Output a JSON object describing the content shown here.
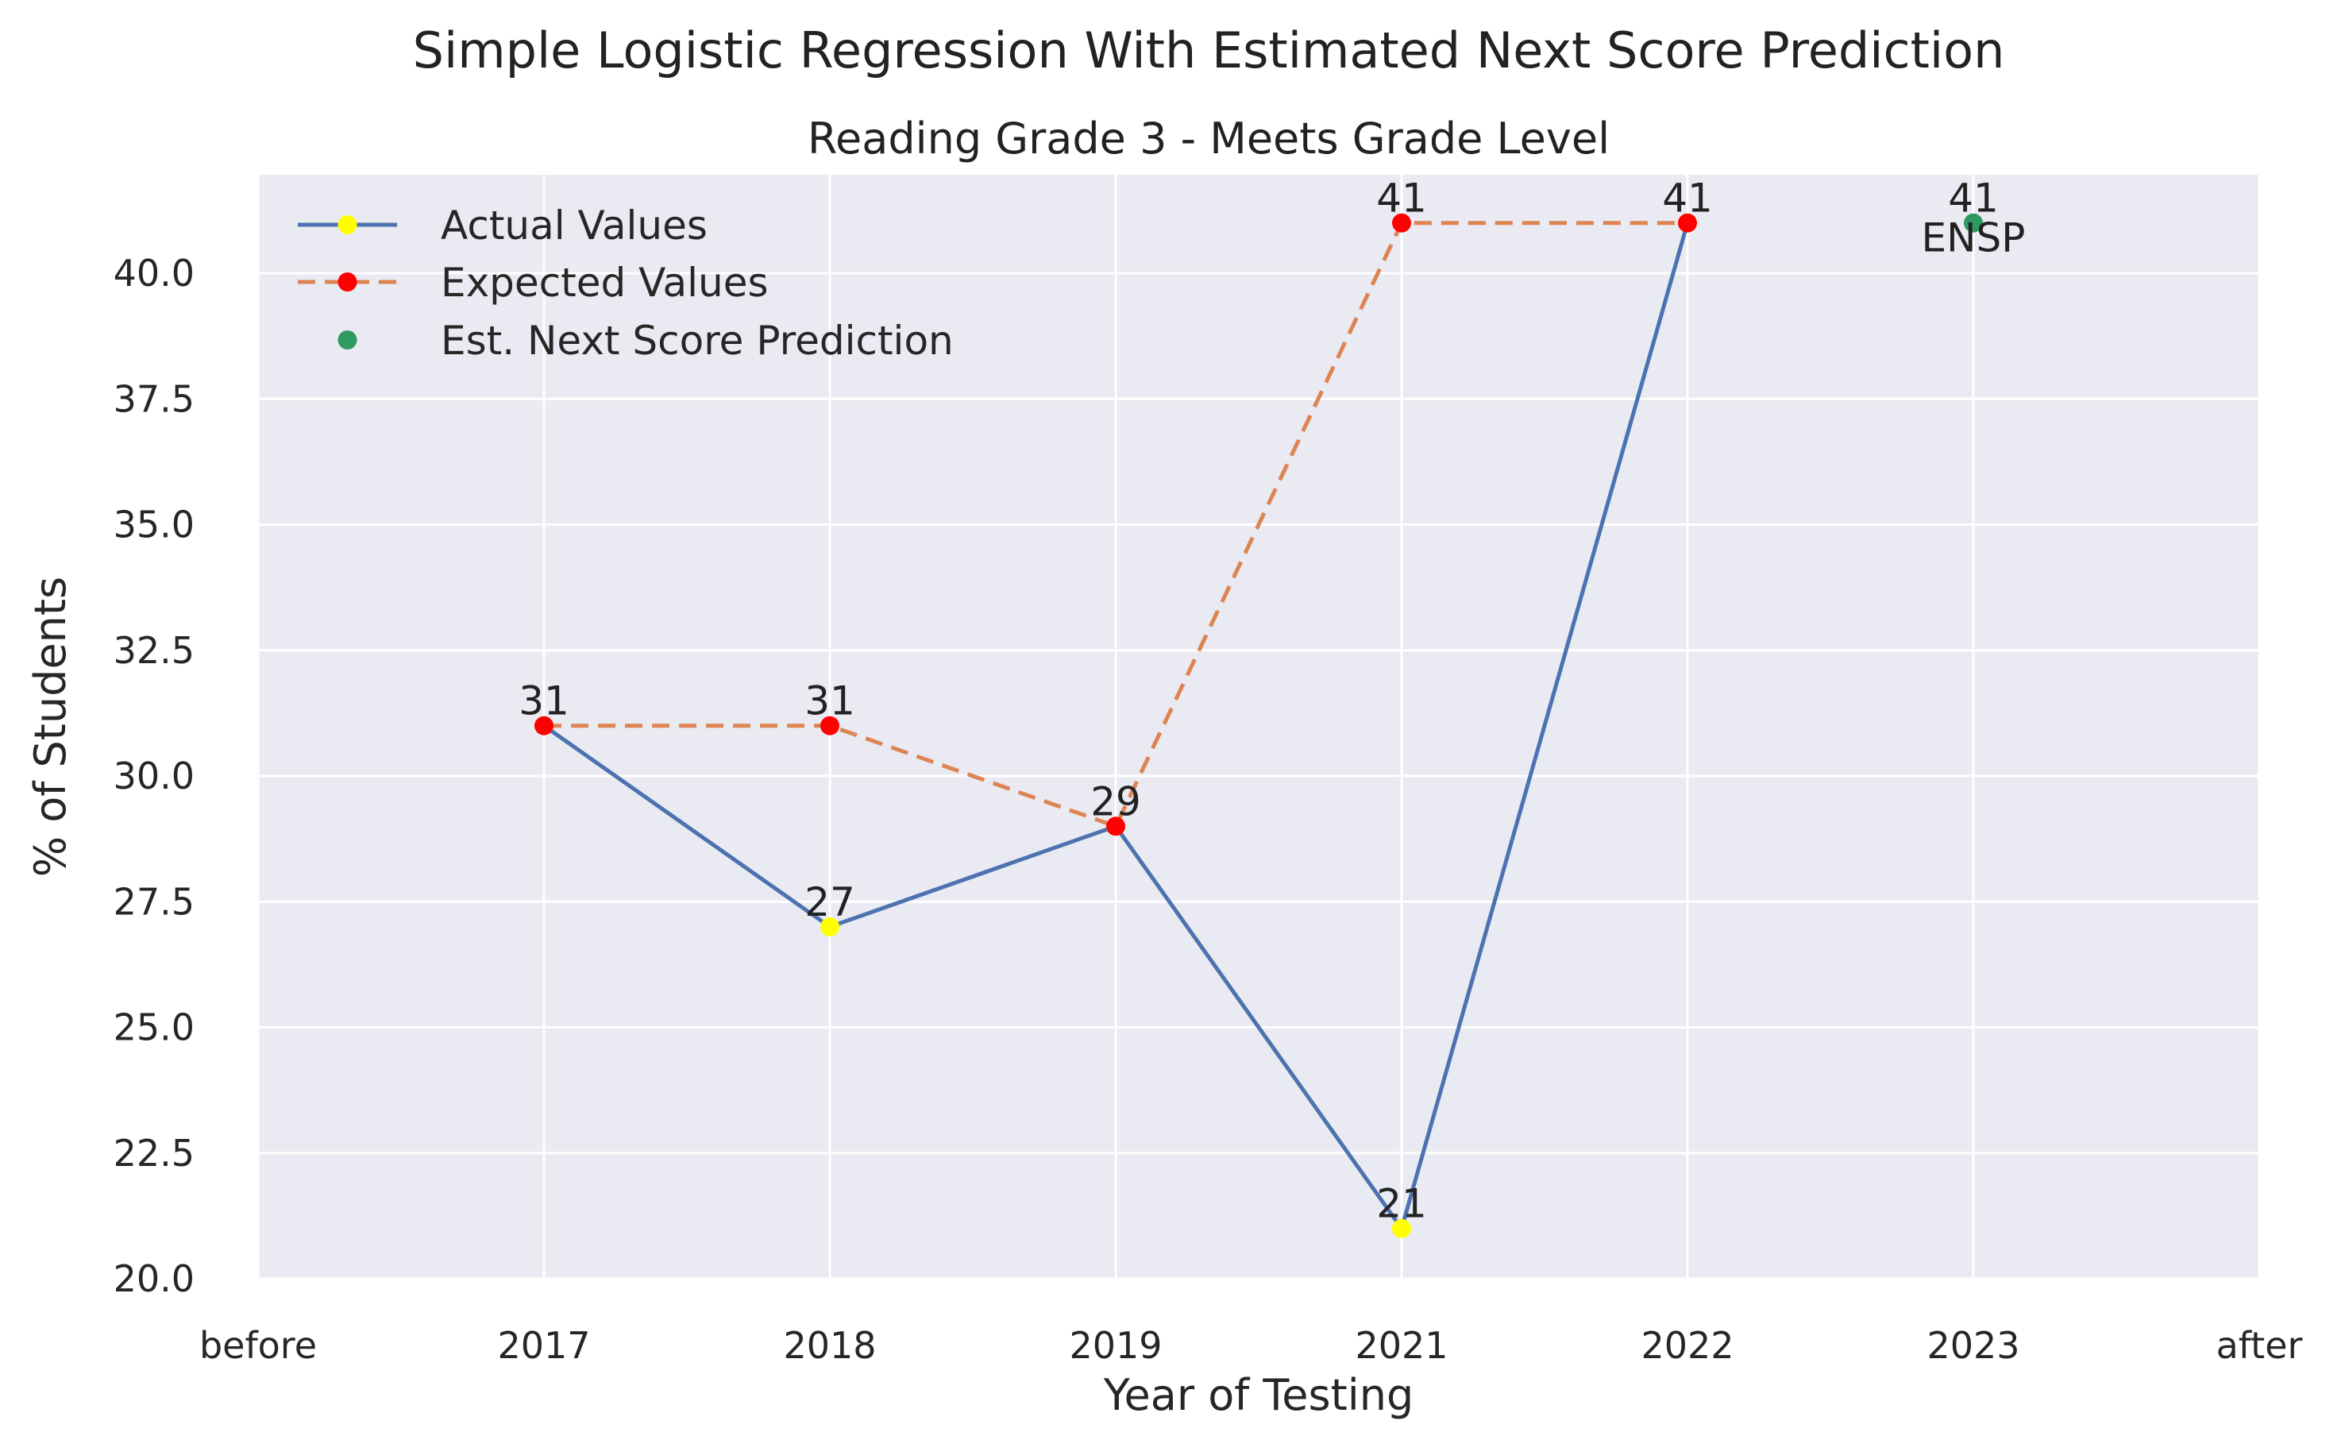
{
  "chart_data": {
    "type": "line",
    "title": "Simple Logistic Regression With Estimated Next Score Prediction",
    "subtitle": "Reading Grade 3 - Meets Grade Level",
    "xlabel": "Year of Testing",
    "ylabel": "% of Students",
    "categories": [
      "before",
      "2017",
      "2018",
      "2019",
      "2021",
      "2022",
      "2023",
      "after"
    ],
    "ylim": [
      20.0,
      42.0
    ],
    "yticks": [
      "20.0",
      "22.5",
      "25.0",
      "27.5",
      "30.0",
      "32.5",
      "35.0",
      "37.5",
      "40.0"
    ],
    "grid": true,
    "legend_position": "top-left",
    "series": [
      {
        "name": "Actual Values",
        "style": "solid",
        "line_color": "#4c72b0",
        "marker_color": "#ffff00",
        "x": [
          "2017",
          "2018",
          "2019",
          "2021",
          "2022"
        ],
        "values": [
          31,
          27,
          29,
          21,
          41
        ]
      },
      {
        "name": "Expected Values",
        "style": "dashed",
        "line_color": "#dd8452",
        "marker_color": "#ff0000",
        "x": [
          "2017",
          "2018",
          "2019",
          "2021",
          "2022"
        ],
        "values": [
          31,
          31,
          29,
          41,
          41
        ]
      },
      {
        "name": "Est. Next Score Prediction",
        "style": "marker",
        "marker_color": "#2e9a5f",
        "x": [
          "2023"
        ],
        "values": [
          41
        ],
        "annotation": "ENSP"
      }
    ],
    "data_labels": [
      {
        "x": "2017",
        "text": "31"
      },
      {
        "x": "2018",
        "text": "27"
      },
      {
        "x": "2018",
        "text": "31"
      },
      {
        "x": "2019",
        "text": "29"
      },
      {
        "x": "2021",
        "text": "21"
      },
      {
        "x": "2021",
        "text": "41"
      },
      {
        "x": "2022",
        "text": "41"
      },
      {
        "x": "2023",
        "text": "41"
      }
    ]
  }
}
